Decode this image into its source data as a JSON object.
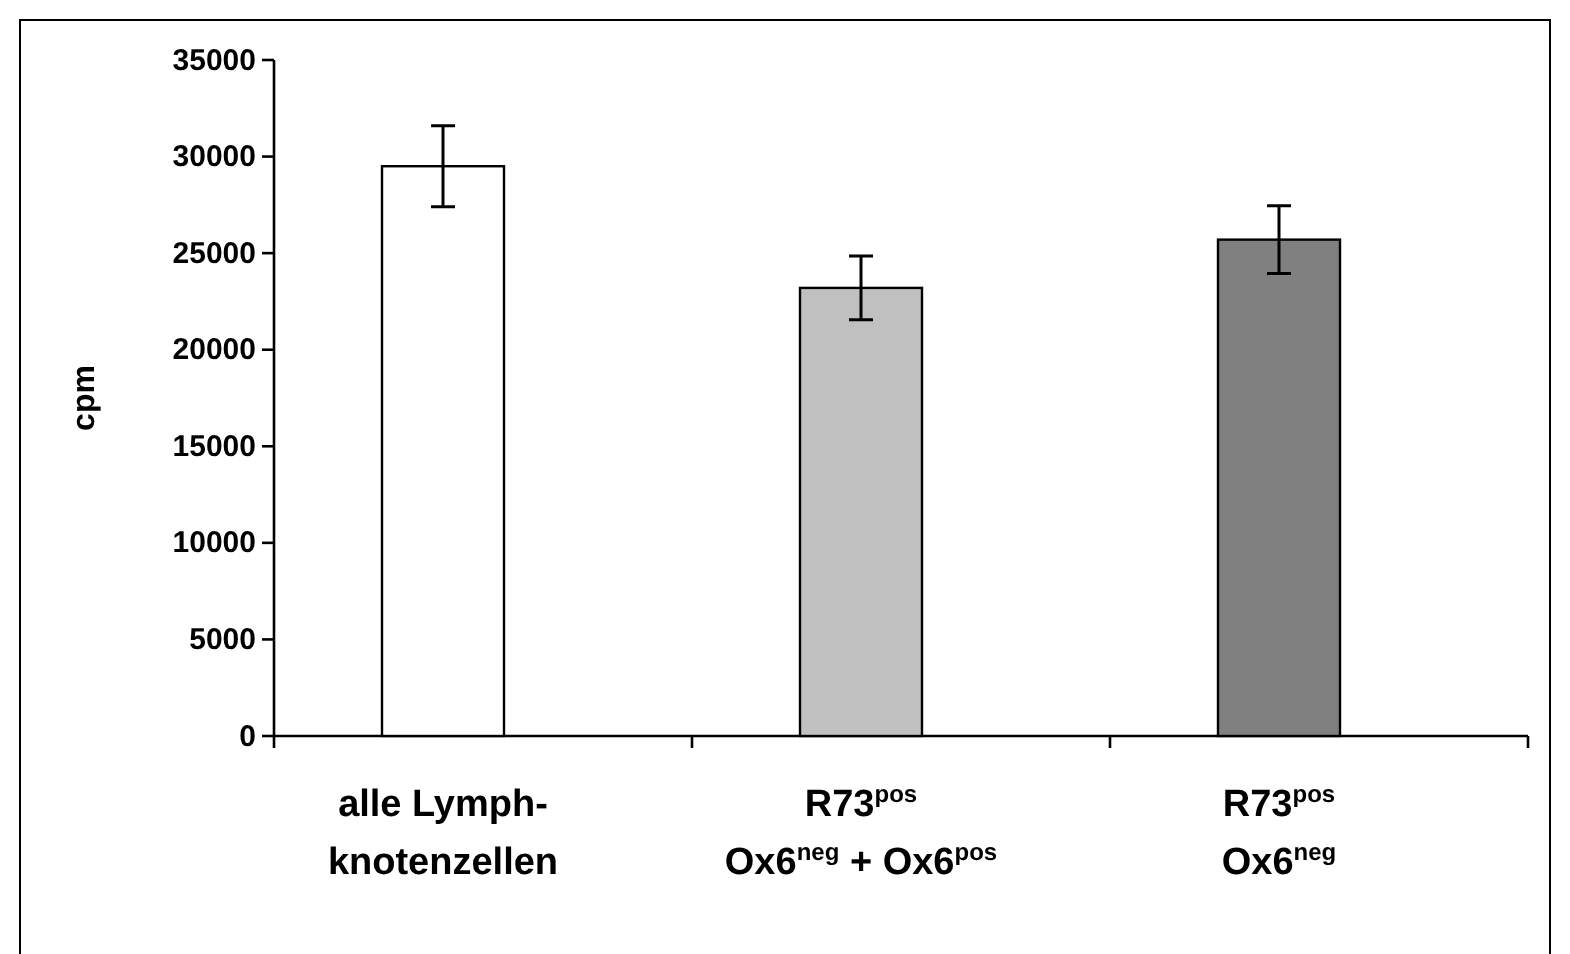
{
  "chart_data": {
    "type": "bar",
    "ylabel": "cpm",
    "categories": [
      "alle Lymph-\nknotenzellen",
      "R73$^{pos}$\nOx6$^{neg}$ + Ox6$^{pos}$",
      "R73$^{pos}$\nOx6$^{neg}$"
    ],
    "values": [
      29500,
      23200,
      25700
    ],
    "errors": [
      2100,
      1650,
      1750
    ],
    "colors": [
      "#ffffff",
      "#c0c0c0",
      "#808080"
    ],
    "ylim": [
      0,
      35000
    ],
    "yticks": [
      0,
      5000,
      10000,
      15000,
      20000,
      25000,
      30000,
      35000
    ],
    "grid": false
  }
}
